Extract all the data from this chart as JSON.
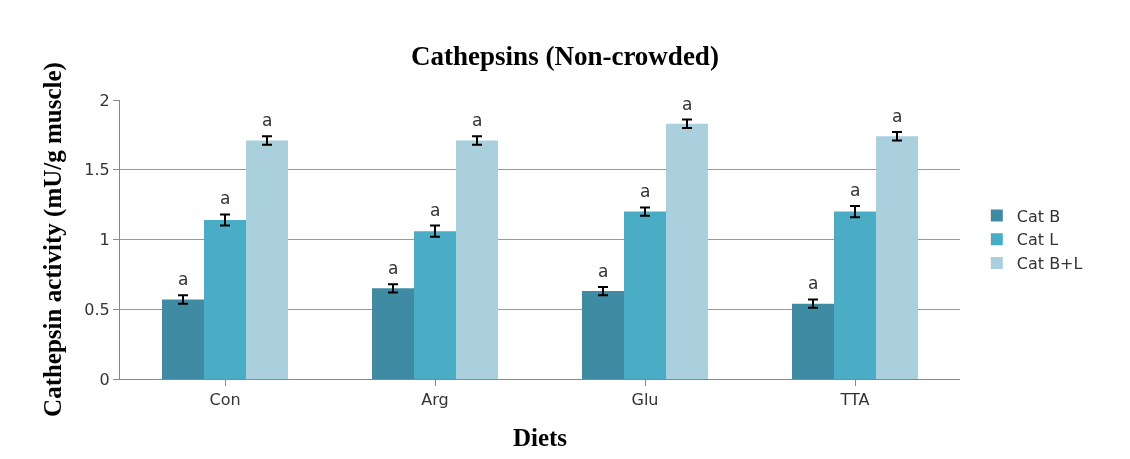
{
  "chart_data": {
    "type": "bar",
    "title": "Cathepsins (Non-crowded)",
    "xlabel": "Diets",
    "ylabel": "Cathepsin activity (mU/g muscle)",
    "categories": [
      "Con",
      "Arg",
      "Glu",
      "TTA"
    ],
    "series": [
      {
        "name": "Cat B",
        "color": "#3e8ba3",
        "values": [
          0.57,
          0.65,
          0.63,
          0.54
        ],
        "errors": [
          0.03,
          0.03,
          0.03,
          0.03
        ],
        "value_labels": [
          "a",
          "a",
          "a",
          "a"
        ]
      },
      {
        "name": "Cat L",
        "color": "#4bacc6",
        "values": [
          1.14,
          1.06,
          1.2,
          1.2
        ],
        "errors": [
          0.04,
          0.04,
          0.03,
          0.04
        ],
        "value_labels": [
          "a",
          "a",
          "a",
          "a"
        ]
      },
      {
        "name": "Cat B+L",
        "color": "#aacfdd",
        "values": [
          1.71,
          1.71,
          1.83,
          1.74
        ],
        "errors": [
          0.03,
          0.03,
          0.03,
          0.03
        ],
        "value_labels": [
          "a",
          "a",
          "a",
          "a"
        ]
      }
    ],
    "ylim": [
      0,
      2
    ],
    "yticks": [
      0,
      0.5,
      1,
      1.5,
      2
    ],
    "grid": "y",
    "legend": "right"
  }
}
